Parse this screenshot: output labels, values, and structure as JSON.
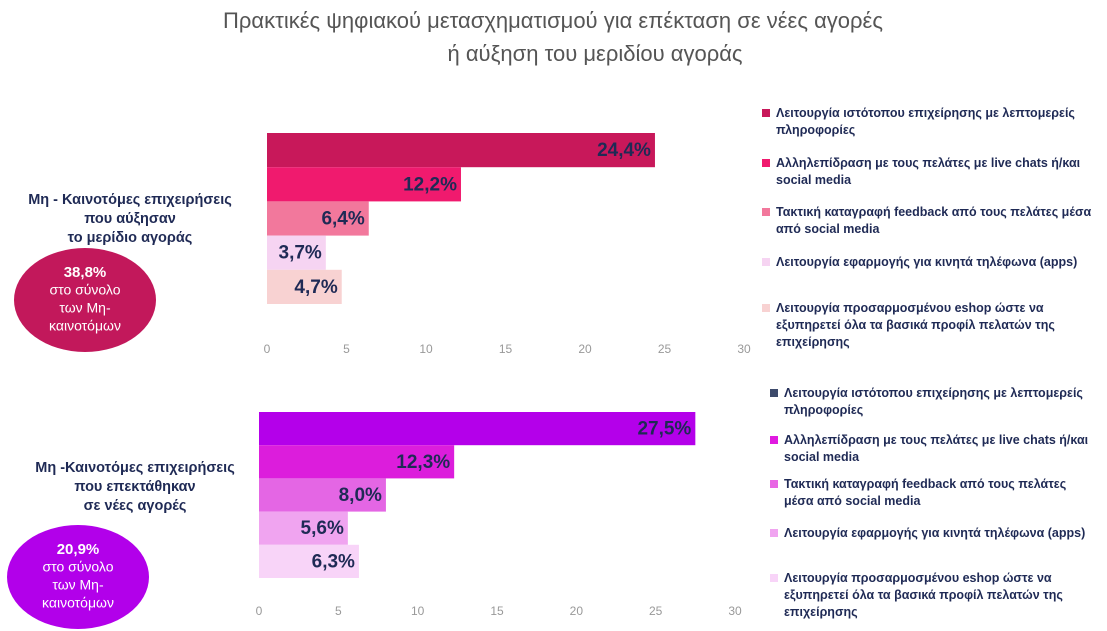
{
  "title": [
    "Πρακτικές ψηφιακού μετασχηματισμού για επέκταση σε νέες αγορές",
    "ή αύξηση του μεριδίου αγοράς"
  ],
  "chart_data": [
    {
      "type": "bar",
      "orientation": "horizontal",
      "group_label": [
        "Μη - Καινοτόμες επιχειρήσεις",
        "που αύξησαν",
        "το μερίδιο αγοράς"
      ],
      "badge": {
        "lines": [
          "38,8%",
          "στο σύνολο",
          "των Μη-",
          "καινοτόμων"
        ],
        "color": "#c2185b"
      },
      "categories": [
        "Λειτουργία ιστότοπου επιχείρησης με λεπτομερείς πληροφορίες",
        "Αλληλεπίδραση με τους πελάτες με live chats ή/και social media",
        "Τακτική καταγραφή feedback από τους πελάτες μέσα από social media",
        "Λειτουργία εφαρμογής για κινητά τηλέφωνα (apps)",
        "Λειτουργία προσαρμοσμένου eshop ώστε να εξυπηρετεί όλα τα βασικά προφίλ πελατών της επιχείρησης"
      ],
      "values": [
        24.4,
        12.2,
        6.4,
        3.7,
        4.7
      ],
      "value_labels": [
        "24,4%",
        "12,2%",
        "6,4%",
        "3,7%",
        "4,7%"
      ],
      "colors": [
        "#c8185a",
        "#f01a6e",
        "#f2789c",
        "#f6d4f2",
        "#f8d2d2"
      ],
      "legend_colors": [
        "#c8185a",
        "#f01a6e",
        "#f2789c",
        "#f6d4f2",
        "#f8d2d2"
      ],
      "xlim": [
        0,
        30
      ],
      "xticks": [
        0,
        5,
        10,
        15,
        20,
        25,
        30
      ]
    },
    {
      "type": "bar",
      "orientation": "horizontal",
      "group_label": [
        "Μη -Καινοτόμες επιχειρήσεις",
        "που επεκτάθηκαν",
        "σε νέες αγορές"
      ],
      "badge": {
        "lines": [
          "20,9%",
          "στο σύνολο",
          "των Μη-",
          "καινοτόμων"
        ],
        "color": "#b200ea"
      },
      "categories": [
        "Λειτουργία ιστότοπου επιχείρησης με λεπτομερείς πληροφορίες",
        "Αλληλεπίδραση με τους πελάτες με live chats ή/και social media",
        "Τακτική καταγραφή feedback από τους πελάτες μέσα από social media",
        "Λειτουργία εφαρμογής για κινητά τηλέφωνα (apps)",
        "Λειτουργία προσαρμοσμένου eshop ώστε να εξυπηρετεί όλα τα βασικά προφίλ πελατών της επιχείρησης"
      ],
      "values": [
        27.5,
        12.3,
        8.0,
        5.6,
        6.3
      ],
      "value_labels": [
        "27,5%",
        "12,3%",
        "8,0%",
        "5,6%",
        "6,3%"
      ],
      "colors": [
        "#b400ea",
        "#dc1ddc",
        "#e466e4",
        "#f0a4f0",
        "#f8d4f8"
      ],
      "legend_colors": [
        "#3d4a6b",
        "#e01ae0",
        "#e866e4",
        "#f0a4f0",
        "#f8d4f8"
      ],
      "xlim": [
        0,
        30
      ],
      "xticks": [
        0,
        5,
        10,
        15,
        20,
        25,
        30
      ]
    }
  ]
}
